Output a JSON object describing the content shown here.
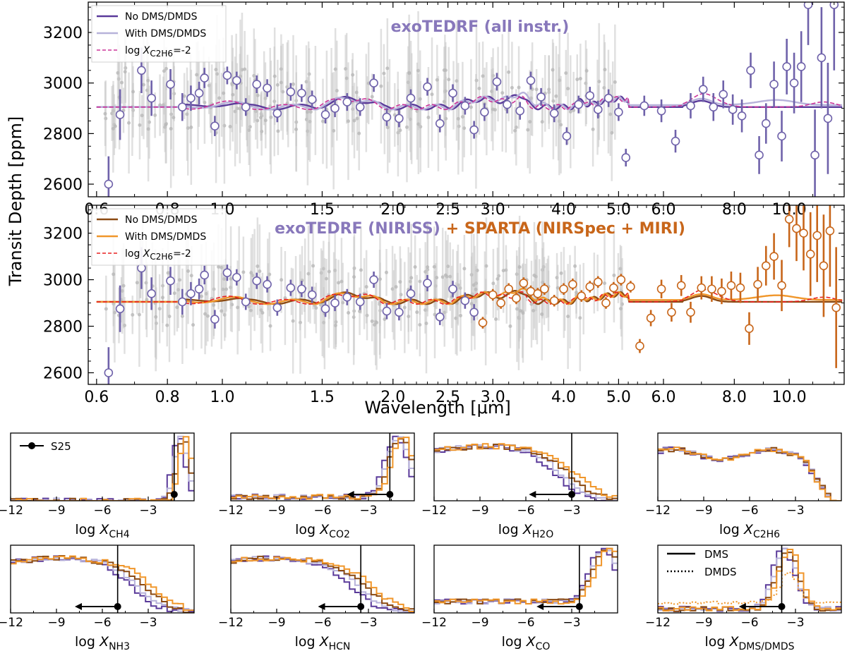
{
  "colors": {
    "purple_dark": "#5a3a9a",
    "purple_light": "#b7b2da",
    "magenta": "#cc3399",
    "brown": "#8b4a12",
    "orange": "#f0962a",
    "red": "#e82020",
    "niriss_points": "#6f62aa",
    "sparta_points": "#c8661a",
    "grey_points": "#c8c8c8"
  },
  "chart_data": [
    {
      "type": "line",
      "name": "top-spectrum",
      "title": "exoTEDRF (all instr.)",
      "ylabel": "Transit Depth [ppm]",
      "xscale": "log",
      "xlim": [
        0.58,
        12.5
      ],
      "ylim": [
        2550,
        3320
      ],
      "xticks": [
        "0.6",
        "0.8",
        "1.0",
        "1.5",
        "2.0",
        "2.5",
        "3.0",
        "4.0",
        "5.0",
        "6.0",
        "8.0",
        "10.0"
      ],
      "xtick_values": [
        0.6,
        0.8,
        1.0,
        1.5,
        2.0,
        2.5,
        3.0,
        4.0,
        5.0,
        6.0,
        8.0,
        10.0
      ],
      "yticks": [
        2600,
        2800,
        3000,
        3200
      ],
      "legend": {
        "placement": "top-left",
        "entries": [
          "No DMS/DMDS",
          "With DMS/DMDS"
        ],
        "entry3_prefix": "log ",
        "entry3_var": "X",
        "entry3_sub": "C2H6",
        "entry3_suffix": "=-2"
      },
      "series": [
        {
          "name": "No DMS/DMDS",
          "style": "solid",
          "color_key": "purple_dark",
          "base": 2905,
          "bump": 0
        },
        {
          "name": "With DMS/DMDS",
          "style": "solid",
          "color_key": "purple_light",
          "base": 2905,
          "bump": 1
        },
        {
          "name": "log X_C2H6=-2",
          "style": "dashed",
          "color_key": "magenta",
          "base": 2905,
          "bump": 2
        }
      ],
      "points": {
        "x": [
          0.63,
          0.66,
          0.72,
          0.75,
          0.81,
          0.85,
          0.88,
          0.91,
          0.93,
          0.97,
          1.02,
          1.06,
          1.1,
          1.15,
          1.2,
          1.25,
          1.32,
          1.38,
          1.44,
          1.52,
          1.58,
          1.66,
          1.75,
          1.85,
          1.95,
          2.05,
          2.15,
          2.3,
          2.42,
          2.55,
          2.68,
          2.78,
          2.9,
          3.05,
          3.18,
          3.35,
          3.5,
          3.65,
          3.85,
          4.05,
          4.25,
          4.45,
          4.6,
          4.8,
          5.0,
          5.15,
          5.55,
          5.95,
          6.3,
          6.7,
          7.05,
          7.35,
          7.65,
          7.95,
          8.25,
          8.55,
          8.85,
          9.1,
          9.4,
          9.7,
          9.9,
          10.2,
          10.5,
          10.8,
          11.1,
          11.4,
          11.7,
          12.0
        ],
        "y": [
          2600,
          2875,
          3050,
          2940,
          2995,
          2905,
          2940,
          2960,
          3020,
          2830,
          3030,
          3010,
          2905,
          2995,
          2980,
          2880,
          2965,
          2960,
          2935,
          2875,
          2900,
          2925,
          2905,
          3000,
          2865,
          2860,
          2940,
          2985,
          2840,
          2960,
          2910,
          2815,
          2885,
          3005,
          2915,
          2890,
          3010,
          2945,
          2880,
          2790,
          2915,
          2950,
          2895,
          2940,
          2885,
          2705,
          2910,
          2890,
          2770,
          2910,
          2975,
          2905,
          2955,
          2895,
          2870,
          3050,
          2715,
          2840,
          2995,
          2790,
          3065,
          3000,
          3065,
          3310,
          2715,
          3100,
          2860,
          3310
        ],
        "err": [
          110,
          100,
          90,
          70,
          60,
          55,
          50,
          45,
          40,
          40,
          35,
          35,
          35,
          35,
          35,
          35,
          35,
          35,
          35,
          35,
          35,
          35,
          35,
          35,
          35,
          35,
          35,
          35,
          35,
          35,
          35,
          35,
          35,
          35,
          35,
          35,
          35,
          35,
          35,
          35,
          35,
          35,
          35,
          35,
          35,
          35,
          40,
          45,
          45,
          50,
          50,
          55,
          55,
          60,
          65,
          70,
          75,
          80,
          90,
          100,
          110,
          120,
          140,
          160,
          180,
          200,
          220,
          260
        ]
      }
    },
    {
      "type": "line",
      "name": "middle-spectrum",
      "title_part1": "exoTEDRF (NIRISS)",
      "title_part2": "+ SPARTA (NIRSpec + MIRI)",
      "xlabel": "Wavelength [μm]",
      "xscale": "log",
      "xlim": [
        0.58,
        12.5
      ],
      "ylim": [
        2550,
        3320
      ],
      "xticks": [
        "0.6",
        "0.8",
        "1.0",
        "1.5",
        "2.0",
        "2.5",
        "3.0",
        "4.0",
        "5.0",
        "6.0",
        "8.0",
        "10.0"
      ],
      "xtick_values": [
        0.6,
        0.8,
        1.0,
        1.5,
        2.0,
        2.5,
        3.0,
        4.0,
        5.0,
        6.0,
        8.0,
        10.0
      ],
      "yticks": [
        2600,
        2800,
        3000,
        3200
      ],
      "legend": {
        "placement": "top-left",
        "entries": [
          "No DMS/DMDS",
          "With DMS/DMDS"
        ],
        "entry3_prefix": "log ",
        "entry3_var": "X",
        "entry3_sub": "C2H6",
        "entry3_suffix": "=-2"
      },
      "series": [
        {
          "name": "No DMS/DMDS",
          "style": "solid",
          "color_key": "brown",
          "base": 2905,
          "bump": 0
        },
        {
          "name": "With DMS/DMDS",
          "style": "solid",
          "color_key": "orange",
          "base": 2905,
          "bump": 1
        },
        {
          "name": "log X_C2H6=-2",
          "style": "dashed",
          "color_key": "red",
          "base": 2905,
          "bump": 2
        }
      ],
      "points_niriss": {
        "x": [
          0.63,
          0.66,
          0.72,
          0.75,
          0.81,
          0.85,
          0.88,
          0.91,
          0.93,
          0.97,
          1.02,
          1.06,
          1.1,
          1.15,
          1.2,
          1.25,
          1.32,
          1.38,
          1.44,
          1.52,
          1.58,
          1.66,
          1.75,
          1.85,
          1.95,
          2.05,
          2.15,
          2.3,
          2.42,
          2.55,
          2.68,
          2.78
        ],
        "y": [
          2600,
          2875,
          3050,
          2940,
          2995,
          2905,
          2940,
          2960,
          3020,
          2830,
          3030,
          3010,
          2905,
          2995,
          2980,
          2880,
          2965,
          2960,
          2935,
          2875,
          2900,
          2925,
          2905,
          3000,
          2865,
          2860,
          2940,
          2985,
          2840,
          2960,
          2910,
          2860
        ],
        "err": [
          110,
          100,
          90,
          70,
          60,
          55,
          50,
          45,
          40,
          40,
          35,
          35,
          35,
          35,
          35,
          35,
          35,
          35,
          35,
          35,
          35,
          35,
          35,
          35,
          35,
          35,
          35,
          35,
          35,
          35,
          35,
          35
        ]
      },
      "points_sparta": {
        "x": [
          2.88,
          3.0,
          3.1,
          3.2,
          3.3,
          3.4,
          3.5,
          3.6,
          3.7,
          3.85,
          4.0,
          4.15,
          4.3,
          4.45,
          4.6,
          4.75,
          4.9,
          5.05,
          5.25,
          5.45,
          5.7,
          5.95,
          6.2,
          6.45,
          6.7,
          7.0,
          7.3,
          7.6,
          7.9,
          8.2,
          8.5,
          8.8,
          9.1,
          9.4,
          9.7,
          10.0,
          10.3,
          10.6,
          10.9,
          11.2,
          11.5,
          11.8,
          12.1
        ],
        "y": [
          2815,
          2935,
          2900,
          2960,
          2920,
          2985,
          2950,
          2940,
          2960,
          2910,
          2960,
          2980,
          2930,
          2970,
          2990,
          2900,
          2965,
          3000,
          2970,
          2715,
          2835,
          2960,
          2860,
          2975,
          2860,
          2965,
          2960,
          2950,
          2975,
          2965,
          2790,
          2980,
          3060,
          3100,
          2975,
          3260,
          3220,
          3200,
          3110,
          3190,
          3060,
          3210,
          2880
        ],
        "err": [
          25,
          25,
          25,
          25,
          25,
          25,
          25,
          25,
          25,
          25,
          25,
          25,
          25,
          25,
          25,
          25,
          25,
          25,
          25,
          30,
          35,
          40,
          40,
          45,
          45,
          50,
          55,
          55,
          60,
          65,
          70,
          75,
          85,
          100,
          110,
          120,
          140,
          160,
          180,
          200,
          220,
          240,
          260
        ]
      }
    },
    {
      "type": "histogram",
      "name": "posteriors",
      "xlim": [
        -12,
        0
      ],
      "xticks": [
        -12,
        -9,
        -6,
        -3
      ],
      "xtick_labels": [
        "−12",
        "−9",
        "−6",
        "−3"
      ],
      "xlabel_prefix": "log ",
      "xlabel_var": "X",
      "legend_top": {
        "marker_label": "S25"
      },
      "legend_bottom": {
        "entries": [
          "DMS",
          "DMDS"
        ]
      },
      "panels": [
        {
          "sub": "CH4",
          "shape": "peak",
          "center": -1.0,
          "width": 0.6,
          "floor": 0.0,
          "ref": -1.3,
          "arrow": false
        },
        {
          "sub": "CO2",
          "shape": "peak",
          "center": -1.2,
          "width": 1.0,
          "floor": 0.06,
          "ref": -1.6,
          "arrow": true
        },
        {
          "sub": "H2O",
          "shape": "plateau",
          "center": -8,
          "width": 4.5,
          "floor": 0.0,
          "ref": -3.0,
          "arrow": true
        },
        {
          "sub": "C2H6",
          "shape": "flat",
          "center": -5,
          "width": 6,
          "floor": 0.0,
          "ref": null,
          "arrow": false
        },
        {
          "sub": "NH3",
          "shape": "plateau",
          "center": -8.5,
          "width": 4.5,
          "floor": 0.0,
          "ref": -5.0,
          "arrow": true
        },
        {
          "sub": "HCN",
          "shape": "plateau",
          "center": -9,
          "width": 4.5,
          "floor": 0.0,
          "ref": -3.5,
          "arrow": true
        },
        {
          "sub": "CO",
          "shape": "peak",
          "center": -1.0,
          "width": 1.2,
          "floor": 0.18,
          "ref": -2.5,
          "arrow": true
        },
        {
          "sub": "DMS/DMDS",
          "shape": "peak",
          "center": -3.8,
          "width": 1.0,
          "floor": 0.06,
          "ref": -3.9,
          "arrow": true
        }
      ]
    }
  ]
}
